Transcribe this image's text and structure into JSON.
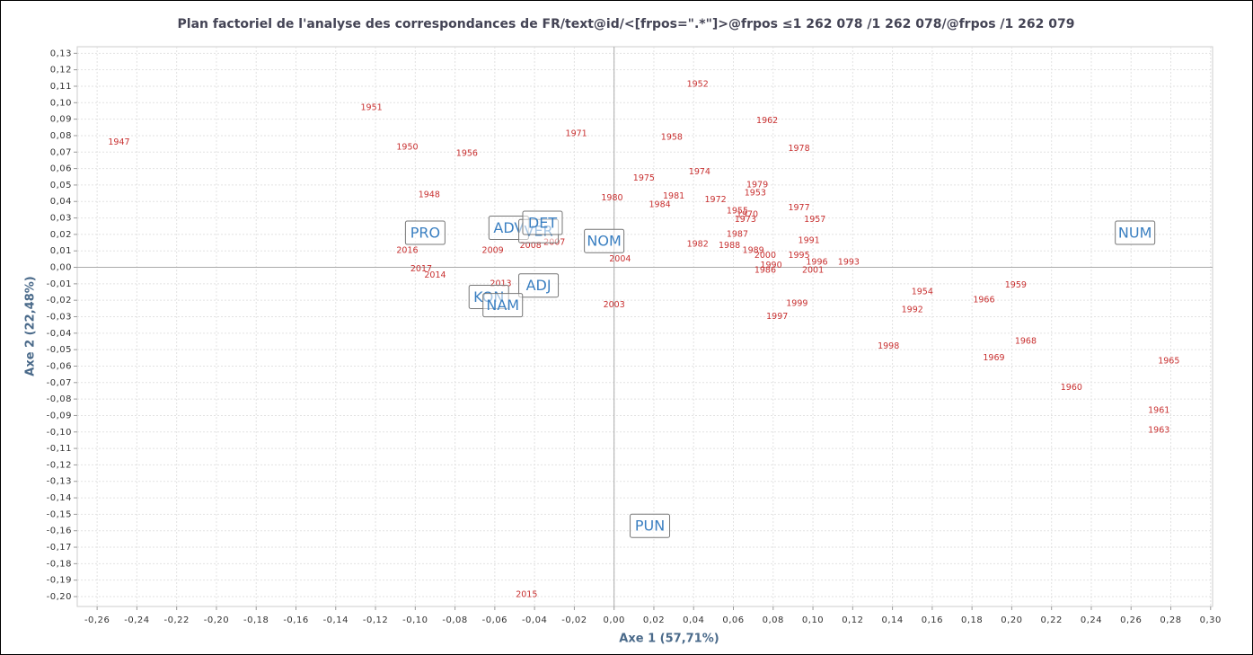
{
  "chart_data": {
    "type": "scatter",
    "title": "Plan factoriel de l'analyse des correspondances de FR/text@id/<[frpos=\".*\"]>@frpos ≤1 262 078 /1 262 078/@frpos /1 262 079",
    "xlabel": "Axe 1 (57,71%)",
    "ylabel": "Axe 2 (22,48%)",
    "grid": true,
    "xlim": [
      -0.27,
      0.301
    ],
    "ylim": [
      -0.206,
      0.134
    ],
    "xticks": [
      {
        "value": -0.26,
        "label": "-0,26"
      },
      {
        "value": -0.24,
        "label": "-0,24"
      },
      {
        "value": -0.22,
        "label": "-0,22"
      },
      {
        "value": -0.2,
        "label": "-0,20"
      },
      {
        "value": -0.18,
        "label": "-0,18"
      },
      {
        "value": -0.16,
        "label": "-0,16"
      },
      {
        "value": -0.14,
        "label": "-0,14"
      },
      {
        "value": -0.12,
        "label": "-0,12"
      },
      {
        "value": -0.1,
        "label": "-0,10"
      },
      {
        "value": -0.08,
        "label": "-0,08"
      },
      {
        "value": -0.06,
        "label": "-0,06"
      },
      {
        "value": -0.04,
        "label": "-0,04"
      },
      {
        "value": -0.02,
        "label": "-0,02"
      },
      {
        "value": 0,
        "label": "0,00"
      },
      {
        "value": 0.02,
        "label": "0,02"
      },
      {
        "value": 0.04,
        "label": "0,04"
      },
      {
        "value": 0.06,
        "label": "0,06"
      },
      {
        "value": 0.08,
        "label": "0,08"
      },
      {
        "value": 0.1,
        "label": "0,10"
      },
      {
        "value": 0.12,
        "label": "0,12"
      },
      {
        "value": 0.14,
        "label": "0,14"
      },
      {
        "value": 0.16,
        "label": "0,16"
      },
      {
        "value": 0.18,
        "label": "0,18"
      },
      {
        "value": 0.2,
        "label": "0,20"
      },
      {
        "value": 0.22,
        "label": "0,22"
      },
      {
        "value": 0.24,
        "label": "0,24"
      },
      {
        "value": 0.26,
        "label": "0,26"
      },
      {
        "value": 0.28,
        "label": "0,28"
      },
      {
        "value": 0.3,
        "label": "0,30"
      }
    ],
    "yticks": [
      {
        "value": 0.13,
        "label": "0,13"
      },
      {
        "value": 0.12,
        "label": "0,12"
      },
      {
        "value": 0.11,
        "label": "0,11"
      },
      {
        "value": 0.1,
        "label": "0,10"
      },
      {
        "value": 0.09,
        "label": "0,09"
      },
      {
        "value": 0.08,
        "label": "0,08"
      },
      {
        "value": 0.07,
        "label": "0,07"
      },
      {
        "value": 0.06,
        "label": "0,06"
      },
      {
        "value": 0.05,
        "label": "0,05"
      },
      {
        "value": 0.04,
        "label": "0,04"
      },
      {
        "value": 0.03,
        "label": "0,03"
      },
      {
        "value": 0.02,
        "label": "0,02"
      },
      {
        "value": 0.01,
        "label": "0,01"
      },
      {
        "value": 0,
        "label": "0,00"
      },
      {
        "value": -0.01,
        "label": "-0,01"
      },
      {
        "value": -0.02,
        "label": "-0,02"
      },
      {
        "value": -0.03,
        "label": "-0,03"
      },
      {
        "value": -0.04,
        "label": "-0,04"
      },
      {
        "value": -0.05,
        "label": "-0,05"
      },
      {
        "value": -0.06,
        "label": "-0,06"
      },
      {
        "value": -0.07,
        "label": "-0,07"
      },
      {
        "value": -0.08,
        "label": "-0,08"
      },
      {
        "value": -0.09,
        "label": "-0,09"
      },
      {
        "value": -0.1,
        "label": "-0,10"
      },
      {
        "value": -0.11,
        "label": "-0,11"
      },
      {
        "value": -0.12,
        "label": "-0,12"
      },
      {
        "value": -0.13,
        "label": "-0,13"
      },
      {
        "value": -0.14,
        "label": "-0,14"
      },
      {
        "value": -0.15,
        "label": "-0,15"
      },
      {
        "value": -0.16,
        "label": "-0,16"
      },
      {
        "value": -0.17,
        "label": "-0,17"
      },
      {
        "value": -0.18,
        "label": "-0,18"
      },
      {
        "value": -0.19,
        "label": "-0,19"
      },
      {
        "value": -0.2,
        "label": "-0,20"
      }
    ],
    "series": [
      {
        "color": "#c83030",
        "label_style": "plain",
        "labels": [
          "1947",
          "1951",
          "1950",
          "1956",
          "1948",
          "1971",
          "1952",
          "1962",
          "1958",
          "1978",
          "1974",
          "1975",
          "1979",
          "1953",
          "1980",
          "1981",
          "1984",
          "1972",
          "1977",
          "1955",
          "1970",
          "1973",
          "1957",
          "1987",
          "1991",
          "1982",
          "1989",
          "1988",
          "1995",
          "2000",
          "1996",
          "1993",
          "1990",
          "2001",
          "1986",
          "2004",
          "2016",
          "2009",
          "2008",
          "2007",
          "2017",
          "2014",
          "2013",
          "2003",
          "1954",
          "1959",
          "1966",
          "1999",
          "1992",
          "1997",
          "1998",
          "1968",
          "1969",
          "1965",
          "1960",
          "1961",
          "1963",
          "2015"
        ],
        "x": [
          -0.249,
          -0.122,
          -0.104,
          -0.074,
          -0.093,
          -0.019,
          0.042,
          0.077,
          0.029,
          0.093,
          0.043,
          0.015,
          0.072,
          0.071,
          -0.001,
          0.03,
          0.023,
          0.051,
          0.093,
          0.062,
          0.067,
          0.066,
          0.101,
          0.062,
          0.098,
          0.042,
          0.07,
          0.058,
          0.093,
          0.076,
          0.102,
          0.118,
          0.079,
          0.1,
          0.076,
          0.003,
          -0.104,
          -0.061,
          -0.042,
          -0.03,
          -0.097,
          -0.09,
          -0.057,
          0.0,
          0.155,
          0.202,
          0.186,
          0.092,
          0.15,
          0.082,
          0.138,
          0.207,
          0.191,
          0.279,
          0.23,
          0.274,
          0.274,
          -0.044
        ],
        "values": [
          0.076,
          0.097,
          0.073,
          0.069,
          0.044,
          0.081,
          0.111,
          0.089,
          0.079,
          0.072,
          0.058,
          0.054,
          0.05,
          0.045,
          0.042,
          0.043,
          0.038,
          0.041,
          0.036,
          0.034,
          0.032,
          0.029,
          0.029,
          0.02,
          0.016,
          0.014,
          0.01,
          0.013,
          0.007,
          0.007,
          0.003,
          0.003,
          0.001,
          -0.002,
          -0.002,
          0.005,
          0.01,
          0.01,
          0.013,
          0.015,
          -0.001,
          -0.005,
          -0.01,
          -0.023,
          -0.015,
          -0.011,
          -0.02,
          -0.022,
          -0.026,
          -0.03,
          -0.048,
          -0.045,
          -0.055,
          -0.057,
          -0.073,
          -0.087,
          -0.099,
          -0.199
        ]
      },
      {
        "color": "#3a7fc1",
        "label_style": "box",
        "labels": [
          "PRO",
          "ADV",
          "VER",
          "DET",
          "NOM",
          "ADJ",
          "KON",
          "NAM",
          "PUN",
          "NUM"
        ],
        "x": [
          -0.095,
          -0.053,
          -0.038,
          -0.036,
          -0.005,
          -0.038,
          -0.063,
          -0.056,
          0.018,
          0.262
        ],
        "values": [
          0.021,
          0.024,
          0.022,
          0.027,
          0.016,
          -0.011,
          -0.018,
          -0.023,
          -0.157,
          0.021
        ]
      }
    ]
  }
}
